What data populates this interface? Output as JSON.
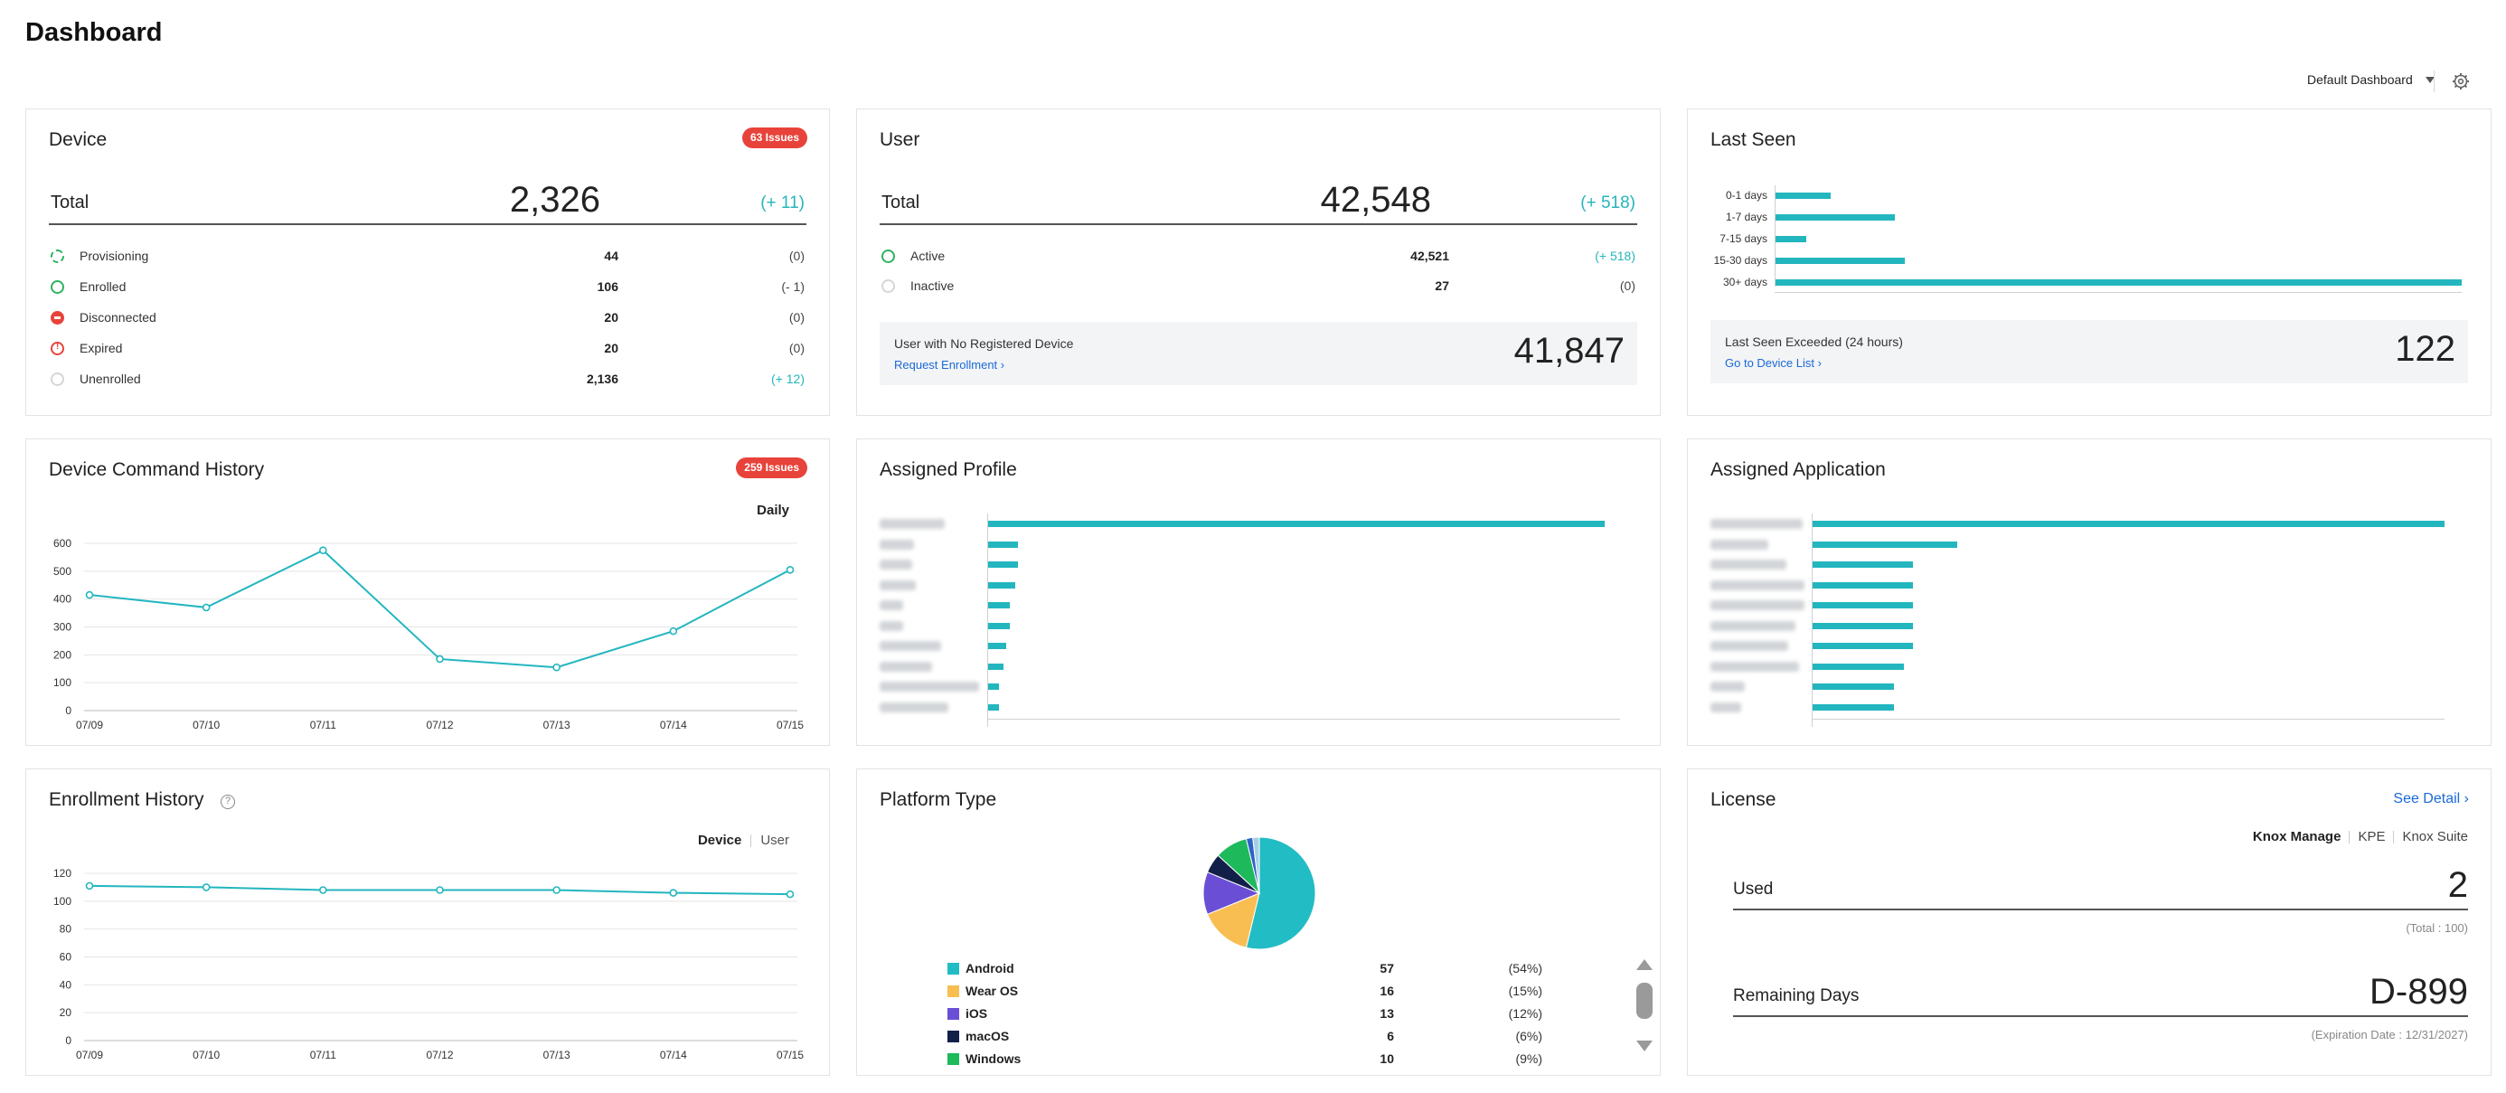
{
  "page": {
    "title": "Dashboard"
  },
  "toolbar": {
    "dashboard_select": "Default Dashboard",
    "settings_icon": "gear-icon"
  },
  "device": {
    "title": "Device",
    "issues_badge": "63 Issues",
    "total_label": "Total",
    "total_value": "2,326",
    "total_delta": "(+ 11)",
    "rows": [
      {
        "label": "Provisioning",
        "value": "44",
        "delta": "(0)",
        "icon": "provisioning-icon"
      },
      {
        "label": "Enrolled",
        "value": "106",
        "delta": "(- 1)",
        "icon": "enrolled-icon"
      },
      {
        "label": "Disconnected",
        "value": "20",
        "delta": "(0)",
        "icon": "disconnected-icon"
      },
      {
        "label": "Expired",
        "value": "20",
        "delta": "(0)",
        "icon": "expired-icon"
      },
      {
        "label": "Unenrolled",
        "value": "2,136",
        "delta": "(+ 12)",
        "icon": "unenrolled-icon"
      }
    ]
  },
  "user": {
    "title": "User",
    "total_label": "Total",
    "total_value": "42,548",
    "total_delta": "(+ 518)",
    "rows": [
      {
        "label": "Active",
        "value": "42,521",
        "delta": "(+ 518)"
      },
      {
        "label": "Inactive",
        "value": "27",
        "delta": "(0)"
      }
    ],
    "no_device_label": "User with No Registered Device",
    "no_device_link": "Request Enrollment",
    "no_device_value": "41,847"
  },
  "last_seen": {
    "title": "Last Seen",
    "chart_data": {
      "type": "bar",
      "orientation": "horizontal",
      "categories": [
        "0-1 days",
        "1-7 days",
        "7-15 days",
        "15-30 days",
        "30+ days"
      ],
      "values": [
        150,
        320,
        85,
        345,
        1825
      ]
    },
    "exceeded_label": "Last Seen Exceeded (24 hours)",
    "exceeded_link": "Go to Device List",
    "exceeded_value": "122"
  },
  "command_history": {
    "title": "Device Command History",
    "issues_badge": "259 Issues",
    "period": "Daily",
    "chart_data": {
      "type": "line",
      "categories": [
        "07/09",
        "07/10",
        "07/11",
        "07/12",
        "07/13",
        "07/14",
        "07/15"
      ],
      "values": [
        415,
        370,
        575,
        185,
        155,
        285,
        505
      ],
      "ylim": [
        0,
        600
      ],
      "yticks": [
        "0",
        "100",
        "200",
        "300",
        "400",
        "500",
        "600"
      ],
      "grid": true
    }
  },
  "assigned_profile": {
    "title": "Assigned Profile",
    "chart_data": {
      "type": "bar",
      "orientation": "horizontal",
      "values": [
        100,
        5,
        5,
        4.6,
        3.7,
        3.7,
        3.1,
        2.6,
        1.9,
        1.9
      ]
    }
  },
  "assigned_application": {
    "title": "Assigned Application",
    "chart_data": {
      "type": "bar",
      "orientation": "horizontal",
      "values": [
        100,
        23,
        16,
        16,
        16,
        16,
        16,
        14.5,
        13,
        13
      ]
    }
  },
  "enrollment_history": {
    "title": "Enrollment History",
    "help_icon": "question-circle-icon",
    "toggle": [
      "Device",
      "User"
    ],
    "chart_data": {
      "type": "line",
      "categories": [
        "07/09",
        "07/10",
        "07/11",
        "07/12",
        "07/13",
        "07/14",
        "07/15"
      ],
      "values": [
        111,
        110,
        108,
        108,
        108,
        106,
        105
      ],
      "ylim": [
        0,
        120
      ],
      "yticks": [
        "0",
        "20",
        "40",
        "60",
        "80",
        "100",
        "120"
      ],
      "grid": true
    }
  },
  "platform": {
    "title": "Platform Type",
    "chart_data": {
      "type": "pie",
      "visible_rows": [
        {
          "name": "Android",
          "count": "57",
          "pct": "(54%)",
          "color": "#22bcc4"
        },
        {
          "name": "Wear OS",
          "count": "16",
          "pct": "(15%)",
          "color": "#f9be52"
        },
        {
          "name": "iOS",
          "count": "13",
          "pct": "(12%)",
          "color": "#6a4fd6"
        },
        {
          "name": "macOS",
          "count": "6",
          "pct": "(6%)",
          "color": "#122049"
        },
        {
          "name": "Windows",
          "count": "10",
          "pct": "(9%)",
          "color": "#1eb95b"
        }
      ],
      "slices": [
        {
          "value": 57,
          "color": "#22bcc4"
        },
        {
          "value": 16,
          "color": "#f9be52"
        },
        {
          "value": 13,
          "color": "#6a4fd6"
        },
        {
          "value": 6,
          "color": "#122049"
        },
        {
          "value": 10,
          "color": "#1eb95b"
        },
        {
          "value": 2,
          "color": "#2f63c7"
        },
        {
          "value": 2,
          "color": "#a6cfe6"
        }
      ]
    }
  },
  "license": {
    "title": "License",
    "see_detail": "See Detail",
    "tabs": [
      "Knox Manage",
      "KPE",
      "Knox Suite"
    ],
    "used_label": "Used",
    "used_value": "2",
    "used_note": "(Total : 100)",
    "remaining_label": "Remaining Days",
    "remaining_value": "D-899",
    "remaining_note": "(Expiration Date : 12/31/2027)"
  }
}
